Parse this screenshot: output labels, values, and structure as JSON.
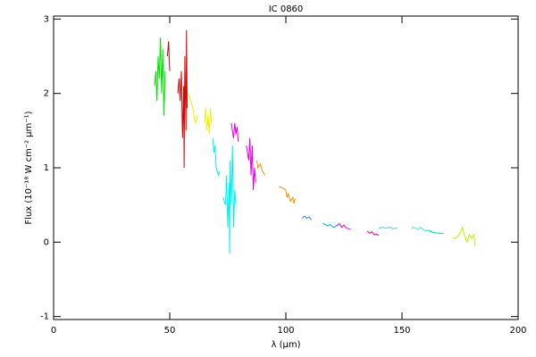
{
  "chart_data": {
    "type": "line",
    "title": "IC 0860",
    "xlabel": "λ (μm)",
    "ylabel": "Flux (10⁻¹⁸ W cm⁻² μm⁻¹)",
    "xlim": [
      0,
      200
    ],
    "xticks": [
      0,
      50,
      100,
      150,
      200
    ],
    "ylim": [
      -1.04,
      3.04
    ],
    "yticks": [
      -1,
      0,
      1,
      2,
      3
    ],
    "series": [
      {
        "color": "#00e000",
        "x": [
          43.5,
          44,
          44.5,
          45,
          45.5,
          46,
          46.5,
          47,
          47.5,
          48
        ],
        "values": [
          2.1,
          2.3,
          1.9,
          2.5,
          2.2,
          2.75,
          2.0,
          2.6,
          1.7,
          2.3
        ]
      },
      {
        "color": "#e00000",
        "x": [
          49,
          49.5,
          50
        ],
        "values": [
          2.5,
          2.7,
          2.3
        ]
      },
      {
        "color": "#e00000",
        "x": [
          53.5,
          54,
          54.5,
          55,
          55.5,
          56,
          56.2,
          56.5,
          57,
          57.2,
          57.5
        ],
        "values": [
          2.0,
          2.2,
          1.9,
          2.3,
          1.4,
          2.1,
          1.0,
          2.5,
          1.5,
          2.85,
          1.8
        ]
      },
      {
        "color": "#f0f000",
        "x": [
          58,
          59,
          60,
          61,
          62
        ],
        "values": [
          2.0,
          1.9,
          1.8,
          1.6,
          1.7
        ]
      },
      {
        "color": "#f0f000",
        "x": [
          65,
          65.5,
          66,
          66.5,
          67,
          67.5,
          68
        ],
        "values": [
          1.6,
          1.8,
          1.5,
          1.7,
          1.45,
          1.8,
          1.6
        ]
      },
      {
        "color": "#00f0f0",
        "x": [
          68.5,
          69,
          69.5,
          70,
          71,
          71.5
        ],
        "values": [
          1.4,
          1.2,
          1.3,
          1.0,
          0.9,
          0.95
        ]
      },
      {
        "color": "#00f0f0",
        "x": [
          73,
          74,
          74.5,
          75,
          75.5,
          75.8,
          76,
          76.5,
          77,
          77.5,
          78,
          78.5
        ],
        "values": [
          0.6,
          0.5,
          0.9,
          0.2,
          0.8,
          -0.15,
          1.1,
          0.5,
          1.3,
          0.2,
          0.7,
          0.5
        ]
      },
      {
        "color": "#e000e0",
        "x": [
          76.5,
          77,
          77.5,
          78,
          78.5,
          79,
          79.5
        ],
        "values": [
          1.6,
          1.5,
          1.4,
          1.6,
          1.45,
          1.55,
          1.35
        ]
      },
      {
        "color": "#e000e0",
        "x": [
          83,
          84,
          84.5,
          85,
          85.5,
          86,
          86.5,
          87
        ],
        "values": [
          1.3,
          1.1,
          1.4,
          0.9,
          1.3,
          0.7,
          1.0,
          0.8
        ]
      },
      {
        "color": "#f09000",
        "x": [
          87.5,
          88,
          89,
          90,
          91
        ],
        "values": [
          1.1,
          1.0,
          1.05,
          0.95,
          0.9
        ]
      },
      {
        "color": "#f09000",
        "x": [
          97,
          98,
          99,
          100,
          100.5,
          101,
          102,
          103,
          103.5,
          104
        ],
        "values": [
          0.75,
          0.74,
          0.72,
          0.7,
          0.6,
          0.65,
          0.55,
          0.6,
          0.52,
          0.58
        ]
      },
      {
        "color": "#2080e0",
        "x": [
          107,
          108,
          109,
          110,
          111
        ],
        "values": [
          0.32,
          0.35,
          0.32,
          0.34,
          0.3
        ]
      },
      {
        "color": "#00b0f0",
        "x": [
          116,
          118,
          119,
          120,
          121,
          122
        ],
        "values": [
          0.25,
          0.22,
          0.24,
          0.21,
          0.2,
          0.23
        ]
      },
      {
        "color": "#e000e0",
        "x": [
          122,
          123,
          124,
          125,
          126,
          127,
          128
        ],
        "values": [
          0.22,
          0.25,
          0.2,
          0.23,
          0.19,
          0.18,
          0.17
        ]
      },
      {
        "color": "#e000c0",
        "x": [
          135,
          136,
          137,
          138,
          139,
          140
        ],
        "values": [
          0.15,
          0.12,
          0.14,
          0.1,
          0.11,
          0.09
        ]
      },
      {
        "color": "#40d0f0",
        "x": [
          140,
          141,
          143,
          145,
          146,
          148
        ],
        "values": [
          0.18,
          0.2,
          0.19,
          0.2,
          0.18,
          0.19
        ]
      },
      {
        "color": "#40e0e0",
        "x": [
          154,
          155,
          157,
          158,
          160,
          162,
          163
        ],
        "values": [
          0.18,
          0.2,
          0.17,
          0.2,
          0.15,
          0.16,
          0.14
        ]
      },
      {
        "color": "#00e0a0",
        "x": [
          162,
          164,
          166,
          168
        ],
        "values": [
          0.14,
          0.13,
          0.12,
          0.12
        ]
      },
      {
        "color": "#c0f000",
        "x": [
          172,
          173,
          174,
          175,
          176,
          177,
          178,
          179,
          180,
          181,
          181.5
        ],
        "values": [
          0.06,
          0.05,
          0.08,
          0.12,
          0.2,
          0.08,
          0.0,
          0.1,
          0.05,
          0.1,
          -0.05
        ]
      }
    ]
  }
}
